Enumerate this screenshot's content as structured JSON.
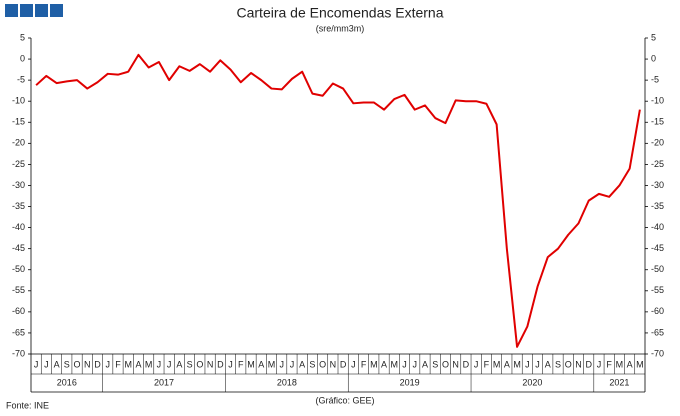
{
  "chart_data": {
    "type": "line",
    "title": "Carteira de Encomendas Externa",
    "subtitle": "(sre/mm3m)",
    "source": "Fonte: INE",
    "credit": "(Gráfico: GEE)",
    "categories": [
      "J",
      "J",
      "A",
      "S",
      "O",
      "N",
      "D",
      "J",
      "F",
      "M",
      "A",
      "M",
      "J",
      "J",
      "A",
      "S",
      "O",
      "N",
      "D",
      "J",
      "F",
      "M",
      "A",
      "M",
      "J",
      "J",
      "A",
      "S",
      "O",
      "N",
      "D",
      "J",
      "F",
      "M",
      "A",
      "M",
      "J",
      "J",
      "A",
      "S",
      "O",
      "N",
      "D",
      "J",
      "F",
      "M",
      "A",
      "M",
      "J",
      "J",
      "A",
      "S",
      "O",
      "N",
      "D",
      "J",
      "F",
      "M",
      "A",
      "M"
    ],
    "year_labels": [
      "2016",
      "2017",
      "2018",
      "2019",
      "2020",
      "2021"
    ],
    "series": [
      {
        "color": "#e00000",
        "values": [
          -6.2,
          -4,
          -5.7,
          -5.3,
          -5,
          -7,
          -5.5,
          -3.5,
          -3.7,
          -3,
          1,
          -2,
          -0.7,
          -5,
          -1.7,
          -2.8,
          -1.2,
          -3,
          -0.3,
          -2.5,
          -5.5,
          -3.3,
          -5,
          -7,
          -7.2,
          -4.7,
          -3,
          -8.2,
          -8.7,
          -5.8,
          -7,
          -10.5,
          -10.3,
          -10.3,
          -12,
          -9.5,
          -8.5,
          -12,
          -11,
          -14,
          -15.2,
          -9.8,
          -10,
          -10,
          -10.6,
          -15.5,
          -45,
          -68.3,
          -63.5,
          -54,
          -47,
          -45,
          -41.7,
          -39,
          -33.6,
          -32,
          -32.7,
          -30,
          -26,
          -12
        ]
      }
    ],
    "ylim": [
      -70,
      5
    ],
    "yticks": [
      5,
      0,
      -5,
      -10,
      -15,
      -20,
      -25,
      -30,
      -35,
      -40,
      -45,
      -50,
      -55,
      -60,
      -65,
      -70
    ],
    "y2lim": [
      -70,
      5
    ],
    "y2ticks": [
      5,
      0,
      -5,
      -10,
      -15,
      -20,
      -25,
      -30,
      -35,
      -40,
      -45,
      -50,
      -55,
      -60,
      -65,
      -70
    ]
  }
}
